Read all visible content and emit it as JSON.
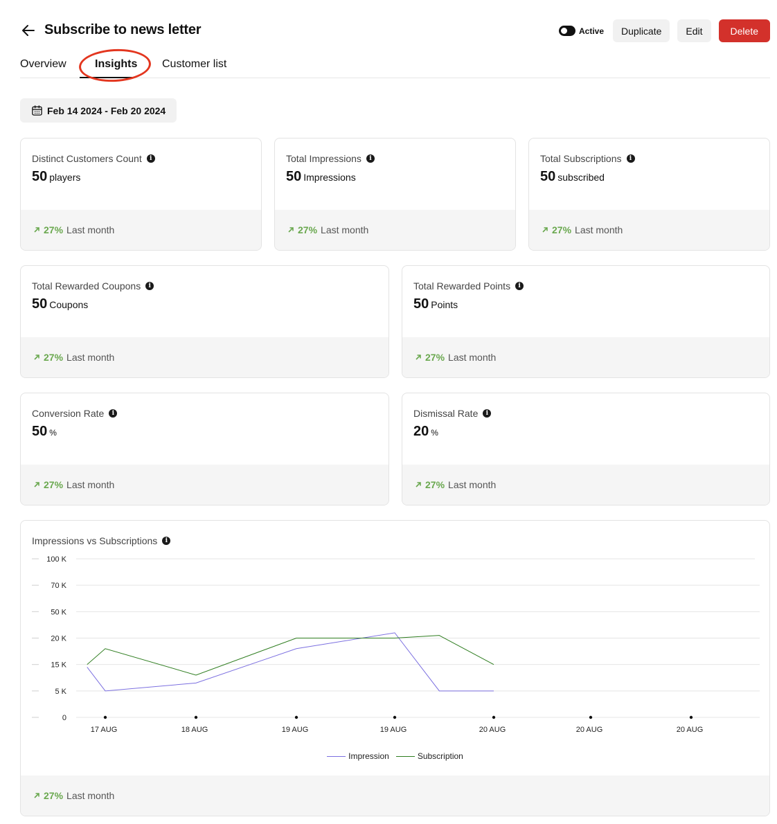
{
  "header": {
    "title": "Subscribe to news letter",
    "toggle_label": "Active",
    "duplicate_label": "Duplicate",
    "edit_label": "Edit",
    "delete_label": "Delete"
  },
  "tabs": [
    {
      "label": "Overview"
    },
    {
      "label": "Insights"
    },
    {
      "label": "Customer list"
    }
  ],
  "date_range": "Feb 14 2024 - Feb 20 2024",
  "colors": {
    "accent_red": "#d3312b",
    "trend_green": "#6aa84f",
    "impression_line": "#7b6fe0",
    "subscription_line": "#2e7d1f"
  },
  "cards": [
    {
      "title": "Distinct Customers Count",
      "value": "50",
      "unit": "players",
      "trend_pct": "27%",
      "trend_label": "Last month"
    },
    {
      "title": "Total Impressions",
      "value": "50",
      "unit": "Impressions",
      "trend_pct": "27%",
      "trend_label": "Last month"
    },
    {
      "title": "Total Subscriptions",
      "value": "50",
      "unit": "subscribed",
      "trend_pct": "27%",
      "trend_label": "Last month"
    },
    {
      "title": "Total Rewarded Coupons",
      "value": "50",
      "unit": "Coupons",
      "trend_pct": "27%",
      "trend_label": "Last month"
    },
    {
      "title": "Total Rewarded Points",
      "value": "50",
      "unit": "Points",
      "trend_pct": "27%",
      "trend_label": "Last month"
    },
    {
      "title": "Conversion Rate",
      "value": "50",
      "unit": "%",
      "trend_pct": "27%",
      "trend_label": "Last month"
    },
    {
      "title": "Dismissal Rate",
      "value": "20",
      "unit": "%",
      "trend_pct": "27%",
      "trend_label": "Last month"
    }
  ],
  "chart_card": {
    "title": "Impressions vs Subscriptions",
    "trend_pct": "27%",
    "trend_label": "Last month"
  },
  "chart_data": {
    "type": "line",
    "title": "Impressions vs Subscriptions",
    "y_ticks": [
      "0",
      "5 K",
      "15 K",
      "20 K",
      "50 K",
      "70 K",
      "100 K"
    ],
    "y_tick_values": [
      0,
      5000,
      15000,
      20000,
      50000,
      70000,
      100000
    ],
    "x_labels": [
      "17 AUG",
      "18 AUG",
      "19 AUG",
      "19 AUG",
      "20 AUG",
      "20 AUG",
      "20 AUG"
    ],
    "x_label_index": [
      0,
      1,
      2,
      3,
      4,
      5,
      6
    ],
    "grid": true,
    "legend_position": "bottom-center",
    "series": [
      {
        "name": "Impression",
        "color": "#7b6fe0",
        "points": [
          [
            -0.2,
            14000
          ],
          [
            0,
            5000
          ],
          [
            1,
            8000
          ],
          [
            2,
            18000
          ],
          [
            3,
            26000
          ],
          [
            3.45,
            5000
          ],
          [
            4,
            5000
          ]
        ]
      },
      {
        "name": "Subscription",
        "color": "#2e7d1f",
        "points": [
          [
            -0.2,
            15000
          ],
          [
            0,
            18000
          ],
          [
            1,
            11000
          ],
          [
            2,
            20000
          ],
          [
            3,
            20000
          ],
          [
            3.45,
            23000
          ],
          [
            4,
            15000
          ]
        ]
      }
    ]
  }
}
